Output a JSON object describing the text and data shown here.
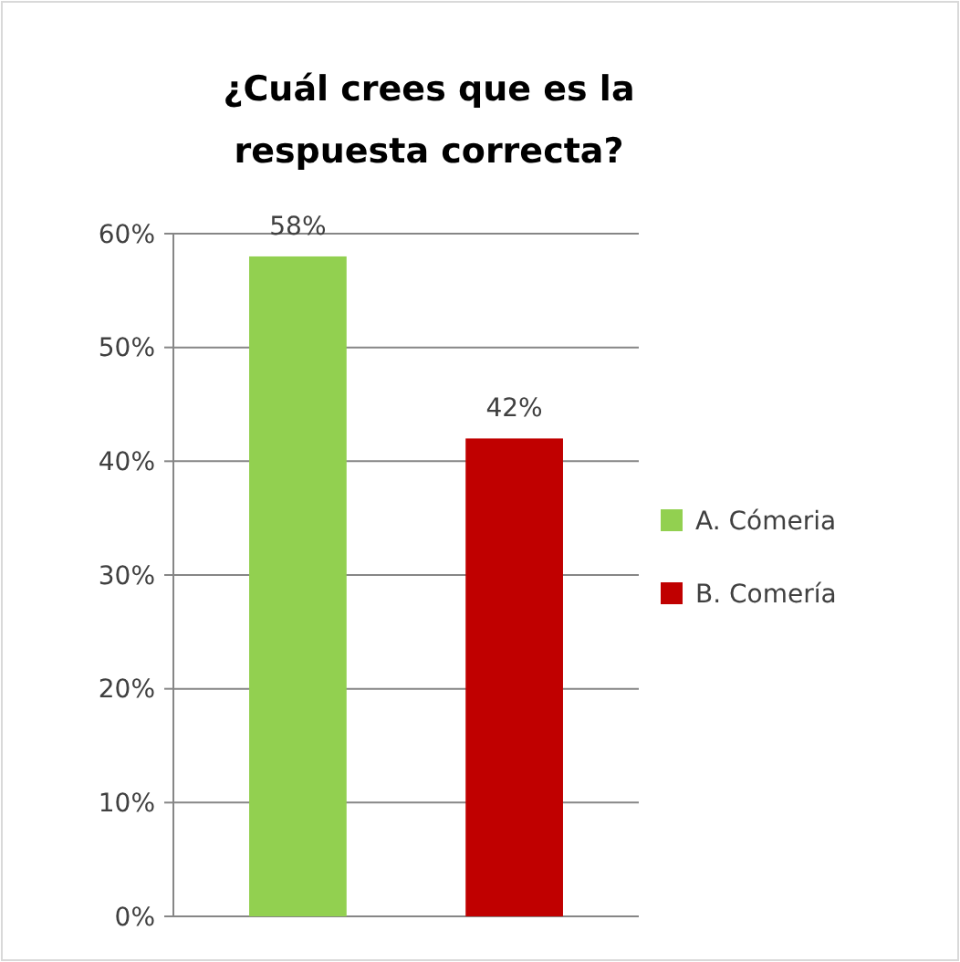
{
  "chart_data": {
    "type": "bar",
    "title": "¿Cuál crees que es la respuesta correcta?",
    "categories": [
      null,
      null
    ],
    "series": [
      {
        "name": "A. Cómeria",
        "color": "#92d050",
        "values": [
          58,
          null
        ],
        "value_labels": [
          "58%",
          null
        ]
      },
      {
        "name": "B. Comería",
        "color": "#c00000",
        "values": [
          null,
          42
        ],
        "value_labels": [
          null,
          "42%"
        ]
      }
    ],
    "ylim": [
      0,
      60
    ],
    "yticks": [
      {
        "value": 0,
        "label": "0%"
      },
      {
        "value": 10,
        "label": "10%"
      },
      {
        "value": 20,
        "label": "20%"
      },
      {
        "value": 30,
        "label": "30%"
      },
      {
        "value": 40,
        "label": "40%"
      },
      {
        "value": 50,
        "label": "50%"
      },
      {
        "value": 60,
        "label": "60%"
      }
    ],
    "grid": "y",
    "legend": "right",
    "tick_labels": "y"
  }
}
